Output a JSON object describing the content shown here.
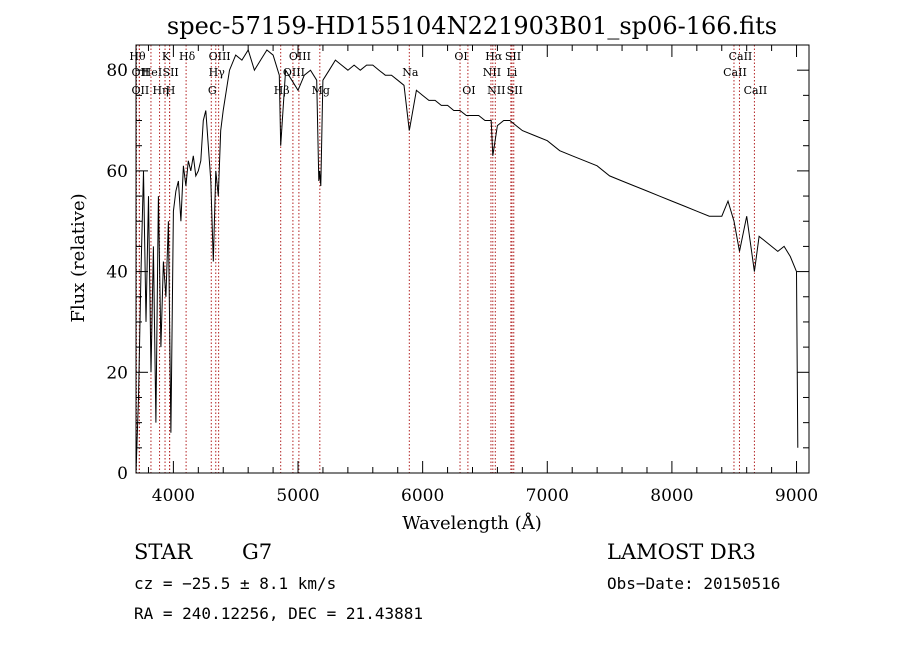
{
  "chart_data": {
    "type": "line",
    "title": "spec-57159-HD155104N221903B01_sp06-166.fits",
    "xlabel": "Wavelength (Å)",
    "ylabel": "Flux (relative)",
    "xlim": [
      3700,
      9100
    ],
    "ylim": [
      0,
      85
    ],
    "xticks": [
      4000,
      5000,
      6000,
      7000,
      8000,
      9000
    ],
    "yticks": [
      0,
      20,
      40,
      60,
      80
    ],
    "x_tick_labels": [
      "4000",
      "5000",
      "6000",
      "7000",
      "8000",
      "9000"
    ],
    "y_tick_labels": [
      "0",
      "20",
      "40",
      "60",
      "80"
    ],
    "series": [
      {
        "name": "flux",
        "x": [
          3700,
          3720,
          3740,
          3760,
          3780,
          3800,
          3820,
          3840,
          3860,
          3880,
          3900,
          3920,
          3940,
          3960,
          3980,
          4000,
          4020,
          4040,
          4060,
          4080,
          4100,
          4120,
          4140,
          4160,
          4180,
          4200,
          4220,
          4240,
          4260,
          4280,
          4300,
          4320,
          4340,
          4360,
          4380,
          4400,
          4450,
          4500,
          4550,
          4600,
          4650,
          4700,
          4750,
          4800,
          4850,
          4861,
          4900,
          4950,
          5000,
          5050,
          5100,
          5150,
          5167,
          5173,
          5183,
          5200,
          5250,
          5300,
          5350,
          5400,
          5450,
          5500,
          5550,
          5600,
          5650,
          5700,
          5750,
          5800,
          5850,
          5893,
          5950,
          6000,
          6050,
          6100,
          6150,
          6200,
          6250,
          6300,
          6350,
          6400,
          6450,
          6500,
          6550,
          6563,
          6600,
          6650,
          6700,
          6750,
          6800,
          6900,
          7000,
          7100,
          7200,
          7300,
          7400,
          7500,
          7600,
          7700,
          7800,
          7900,
          8000,
          8100,
          8200,
          8300,
          8400,
          8450,
          8498,
          8542,
          8600,
          8662,
          8700,
          8750,
          8800,
          8850,
          8900,
          8950,
          9000,
          9010
        ],
        "y": [
          0,
          15,
          40,
          60,
          30,
          55,
          20,
          45,
          10,
          55,
          25,
          42,
          35,
          50,
          8,
          52,
          56,
          58,
          50,
          61,
          57,
          62,
          60,
          63,
          59,
          60,
          62,
          70,
          72,
          65,
          58,
          42,
          60,
          55,
          68,
          72,
          80,
          83,
          82,
          84,
          80,
          82,
          84,
          83,
          79,
          65,
          80,
          78,
          76,
          79,
          80,
          78,
          58,
          60,
          57,
          78,
          80,
          82,
          81,
          80,
          81,
          80,
          81,
          81,
          80,
          79,
          79,
          78,
          77,
          68,
          76,
          75,
          74,
          74,
          73,
          73,
          72,
          72,
          71,
          71,
          71,
          70,
          70,
          63,
          69,
          70,
          70,
          69,
          68,
          67,
          66,
          64,
          63,
          62,
          61,
          59,
          58,
          57,
          56,
          55,
          54,
          53,
          52,
          51,
          51,
          54,
          50,
          44,
          51,
          40,
          47,
          46,
          45,
          44,
          45,
          43,
          40,
          5
        ]
      }
    ],
    "lines": [
      {
        "wl": 3704,
        "label": "Hθ",
        "row": 0
      },
      {
        "wl": 3727,
        "label": "OII",
        "row": 1
      },
      {
        "wl": 3727,
        "label": "OII",
        "row": 2
      },
      {
        "wl": 3820,
        "label": "HeI",
        "row": 1
      },
      {
        "wl": 3889,
        "label": "Hη",
        "row": 2
      },
      {
        "wl": 3933,
        "label": "K",
        "row": 0
      },
      {
        "wl": 3969,
        "label": "H",
        "row": 2
      },
      {
        "wl": 3970,
        "label": "SII",
        "row": 1
      },
      {
        "wl": 4102,
        "label": "Hδ",
        "row": 0
      },
      {
        "wl": 4304,
        "label": "G",
        "row": 2
      },
      {
        "wl": 4340,
        "label": "Hγ",
        "row": 1
      },
      {
        "wl": 4363,
        "label": "OIII",
        "row": 0
      },
      {
        "wl": 4861,
        "label": "Hβ",
        "row": 2
      },
      {
        "wl": 4959,
        "label": "OIII",
        "row": 1
      },
      {
        "wl": 5007,
        "label": "OIII",
        "row": 0
      },
      {
        "wl": 5175,
        "label": "Mg",
        "row": 2
      },
      {
        "wl": 5893,
        "label": "Na",
        "row": 1
      },
      {
        "wl": 6300,
        "label": "OI",
        "row": 0
      },
      {
        "wl": 6363,
        "label": "OI",
        "row": 2
      },
      {
        "wl": 6548,
        "label": "NII",
        "row": 1
      },
      {
        "wl": 6563,
        "label": "Hα",
        "row": 0
      },
      {
        "wl": 6583,
        "label": "NII",
        "row": 2
      },
      {
        "wl": 6708,
        "label": "Li",
        "row": 1
      },
      {
        "wl": 6717,
        "label": "SII",
        "row": 0
      },
      {
        "wl": 6731,
        "label": "SII",
        "row": 2
      },
      {
        "wl": 8498,
        "label": "CaII",
        "row": 1
      },
      {
        "wl": 8542,
        "label": "CaII",
        "row": 0
      },
      {
        "wl": 8662,
        "label": "CaII",
        "row": 2
      }
    ]
  },
  "info": {
    "object_class": "STAR",
    "subclass": "G7",
    "survey": "LAMOST DR3",
    "cz": "cz = −25.5 ± 8.1 km/s",
    "obs_date": "Obs−Date: 20150516",
    "coords": "RA = 240.12256, DEC =  21.43881"
  },
  "colors": {
    "spectrum": "#000000",
    "line_markers": "#b22222",
    "axis": "#000000"
  }
}
